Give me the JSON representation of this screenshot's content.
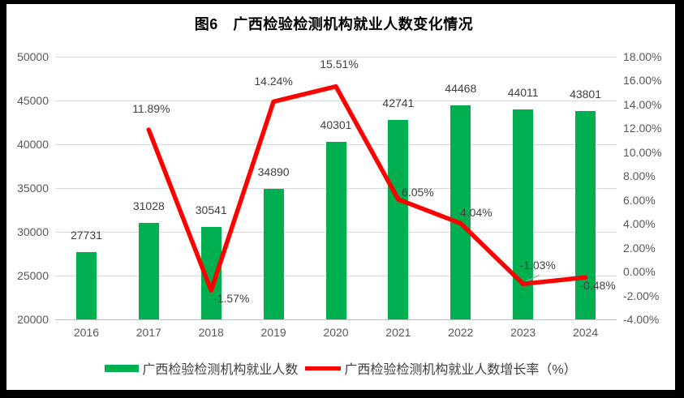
{
  "chart_data": {
    "type": "bar+line",
    "title": "图6　广西检验检测机构就业人数变化情况",
    "categories": [
      "2016",
      "2017",
      "2018",
      "2019",
      "2020",
      "2021",
      "2022",
      "2023",
      "2024"
    ],
    "series": [
      {
        "name": "广西检验检测机构就业人数",
        "type": "bar",
        "yaxis": "left",
        "color": "#00B050",
        "values": [
          27731,
          31028,
          30541,
          34890,
          40301,
          42741,
          44468,
          44011,
          43801
        ],
        "point_labels": [
          "27731",
          "31028",
          "30541",
          "34890",
          "40301",
          "42741",
          "44468",
          "44011",
          "43801"
        ]
      },
      {
        "name": "广西检验检测机构就业人数增长率（%）",
        "type": "line",
        "yaxis": "right",
        "color": "#FF0000",
        "values": [
          null,
          11.89,
          -1.57,
          14.24,
          15.51,
          6.05,
          4.04,
          -1.03,
          -0.48
        ],
        "point_labels": [
          "",
          "11.89%",
          "-1.57%",
          "14.24%",
          "15.51%",
          "6.05%",
          "4.04%",
          "-1.03%",
          "-0.48%"
        ]
      }
    ],
    "left_axis": {
      "min": 20000,
      "max": 50000,
      "step": 5000,
      "tick_labels": [
        "50000",
        "45000",
        "40000",
        "35000",
        "30000",
        "25000",
        "20000"
      ]
    },
    "right_axis": {
      "min": -4,
      "max": 18,
      "step": 2,
      "tick_labels": [
        "18.00%",
        "16.00%",
        "14.00%",
        "12.00%",
        "10.00%",
        "8.00%",
        "6.00%",
        "4.00%",
        "2.00%",
        "0.00%",
        "-2.00%",
        "-4.00%"
      ]
    },
    "legend_position": "bottom",
    "grid": true
  },
  "colors": {
    "bar": "#00B050",
    "line": "#FF0000",
    "grid": "#D9D9D9",
    "axis_line": "#BFBFBF",
    "axis_text": "#595959",
    "label_text": "#404040",
    "leader_line": "#A6A6A6",
    "frame": "#000000",
    "background": "#FFFFFF"
  }
}
